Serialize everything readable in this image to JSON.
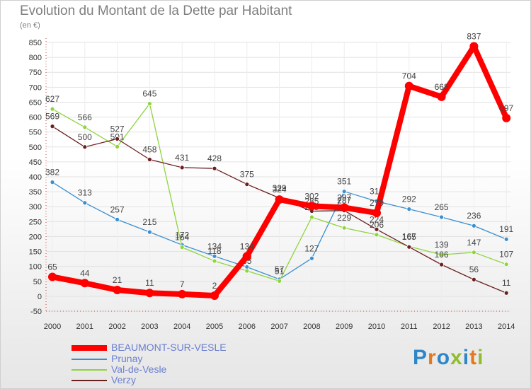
{
  "title": "Evolution du Montant de la Dette par Habitant",
  "subtitle": "(en €)",
  "logo": {
    "text": "Proxiti",
    "letter_colors": [
      "#2e86c8",
      "#e2791c",
      "#2e86c8",
      "#8fbd2b",
      "#2e86c8",
      "#e2791c",
      "#8fbd2b"
    ]
  },
  "chart_data": {
    "type": "line",
    "x": [
      "2000",
      "2001",
      "2002",
      "2003",
      "2004",
      "2005",
      "2006",
      "2007",
      "2008",
      "2009",
      "2010",
      "2011",
      "2012",
      "2013",
      "2014"
    ],
    "ylim": [
      -50,
      850
    ],
    "yticks": [
      -50,
      0,
      50,
      100,
      150,
      200,
      250,
      300,
      350,
      400,
      450,
      500,
      550,
      600,
      650,
      700,
      750,
      800,
      850
    ],
    "grid": true,
    "legend_position": "bottom-left",
    "series": [
      {
        "name": "BEAUMONT-SUR-VESLE",
        "color": "#ff0000",
        "values": [
          65,
          44,
          21,
          11,
          7,
          2,
          134,
          324,
          302,
          297,
          279,
          704,
          668,
          837,
          597
        ],
        "labels": [
          "65",
          "44",
          "21",
          "11",
          "7",
          "2",
          "134",
          "324",
          "302",
          "297",
          "279",
          "704",
          "668",
          "837",
          "597"
        ]
      },
      {
        "name": "Prunay",
        "color": "#3a8fd0",
        "values": [
          382,
          313,
          257,
          215,
          172,
          134,
          98,
          57,
          127,
          351,
          318,
          292,
          265,
          236,
          191
        ],
        "labels": [
          "382",
          "313",
          "257",
          "215",
          "172",
          "134",
          "98",
          "57",
          "127",
          "351",
          "318",
          "292",
          "265",
          "236",
          "191"
        ]
      },
      {
        "name": "Val-de-Vesle",
        "color": "#8fd43c",
        "values": [
          627,
          566,
          501,
          645,
          164,
          118,
          85,
          51,
          265,
          229,
          206,
          167,
          139,
          147,
          107
        ],
        "labels": [
          "627",
          "566",
          "501",
          "645",
          "164",
          "118",
          "85",
          "51",
          "265",
          "229",
          "206",
          "167",
          "139",
          "147",
          "107"
        ]
      },
      {
        "name": "Verzy",
        "color": "#6b1f1f",
        "values": [
          569,
          500,
          527,
          458,
          431,
          428,
          375,
          329,
          285,
          287,
          224,
          165,
          106,
          56,
          11
        ],
        "labels": [
          "569",
          "500",
          "527",
          "458",
          "431",
          "428",
          "375",
          "329",
          "285",
          "287",
          "224",
          "165",
          "106",
          "56",
          "11"
        ]
      }
    ]
  }
}
